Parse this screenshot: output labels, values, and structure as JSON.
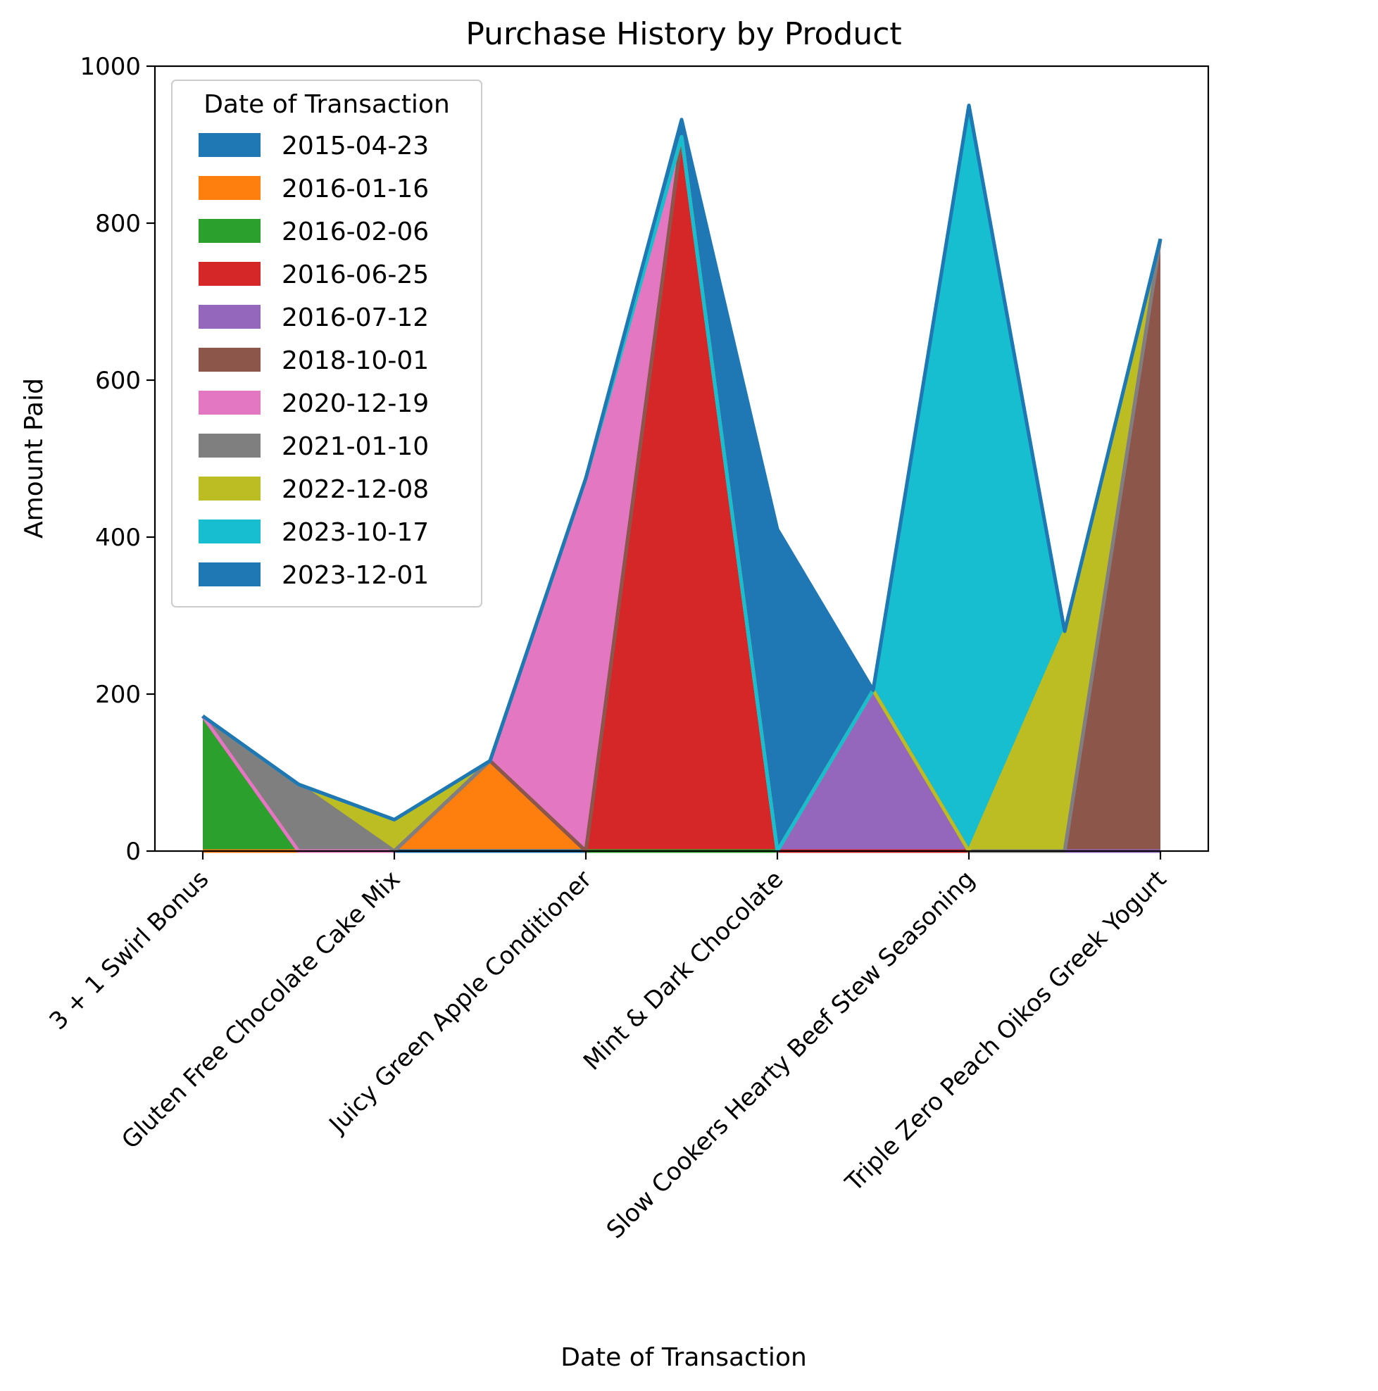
{
  "chart_data": {
    "type": "area",
    "stacked": true,
    "title": "Purchase History by Product",
    "xlabel": "Date of Transaction",
    "ylabel": "Amount Paid",
    "ylim": [
      0,
      1000
    ],
    "yticks": [
      0,
      200,
      400,
      600,
      800,
      1000
    ],
    "x_tick_labels": [
      "3 + 1 Swirl Bonus",
      "Gluten Free Chocolate Cake Mix",
      "Juicy Green Apple Conditioner",
      "Mint & Dark Chocolate",
      "Slow Cookers Hearty Beef Stew Seasoning",
      "Triple Zero Peach Oikos Greek Yogurt"
    ],
    "x_tick_label_rotation": 45,
    "legend": {
      "title": "Date of Transaction",
      "position": "upper-left"
    },
    "grid": false,
    "categories": [
      "0",
      "1",
      "2",
      "3",
      "4",
      "5",
      "6",
      "7",
      "8",
      "9",
      "10"
    ],
    "series": [
      {
        "name": "2015-04-23",
        "color": "#1f77b4",
        "values": [
          0,
          0,
          0,
          0,
          0,
          0,
          0,
          0,
          0,
          0,
          0
        ]
      },
      {
        "name": "2016-01-16",
        "color": "#ff7f0e",
        "values": [
          0,
          0,
          0,
          115,
          0,
          0,
          0,
          0,
          0,
          0,
          0
        ]
      },
      {
        "name": "2016-02-06",
        "color": "#2ca02c",
        "values": [
          172,
          0,
          0,
          0,
          0,
          0,
          0,
          0,
          0,
          0,
          0
        ]
      },
      {
        "name": "2016-06-25",
        "color": "#d62728",
        "values": [
          0,
          0,
          0,
          0,
          0,
          910,
          0,
          0,
          0,
          0,
          0
        ]
      },
      {
        "name": "2016-07-12",
        "color": "#9467bd",
        "values": [
          0,
          0,
          0,
          0,
          0,
          0,
          0,
          205,
          0,
          0,
          0
        ]
      },
      {
        "name": "2018-10-01",
        "color": "#8c564b",
        "values": [
          0,
          0,
          0,
          0,
          0,
          0,
          0,
          0,
          0,
          0,
          780
        ]
      },
      {
        "name": "2020-12-19",
        "color": "#e377c2",
        "values": [
          0,
          0,
          0,
          0,
          475,
          0,
          0,
          0,
          0,
          0,
          0
        ]
      },
      {
        "name": "2021-01-10",
        "color": "#7f7f7f",
        "values": [
          0,
          85,
          0,
          0,
          0,
          0,
          0,
          0,
          0,
          0,
          0
        ]
      },
      {
        "name": "2022-12-08",
        "color": "#bcbd22",
        "values": [
          0,
          0,
          40,
          0,
          0,
          0,
          0,
          0,
          0,
          280,
          0
        ]
      },
      {
        "name": "2023-10-17",
        "color": "#17becf",
        "values": [
          0,
          0,
          0,
          0,
          0,
          0,
          0,
          0,
          950,
          0,
          0
        ]
      },
      {
        "name": "2023-12-01",
        "color": "#1f77b4",
        "values": [
          0,
          0,
          0,
          0,
          0,
          22,
          410,
          0,
          0,
          0,
          0
        ]
      }
    ]
  }
}
